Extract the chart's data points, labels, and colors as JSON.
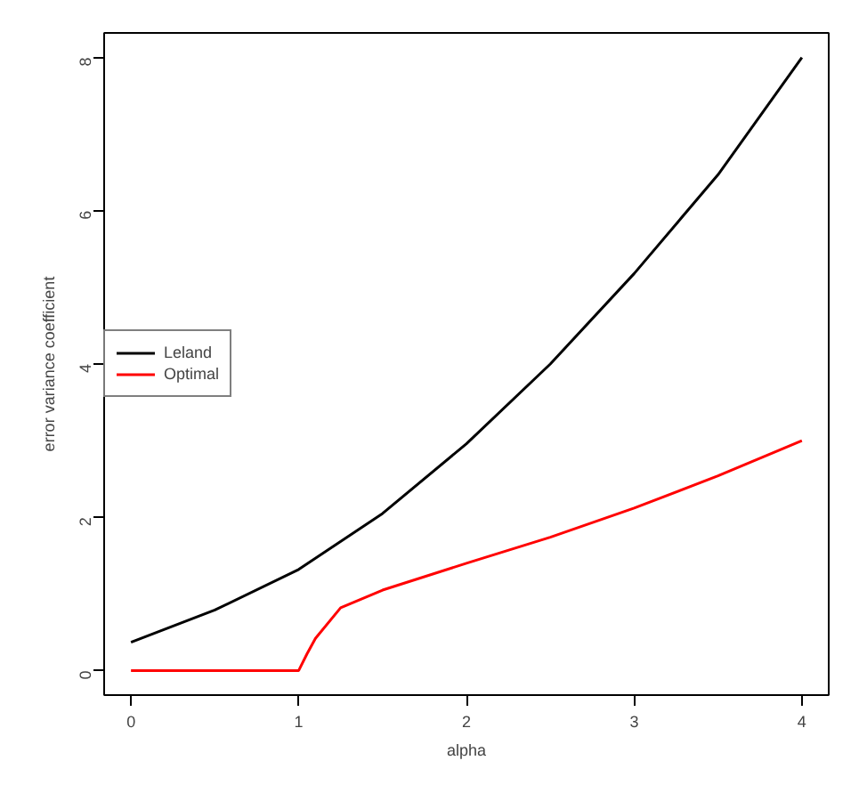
{
  "chart_data": {
    "type": "line",
    "xlabel": "alpha",
    "ylabel": "error variance coefficient",
    "xlim": [
      -0.16,
      4.16
    ],
    "ylim": [
      -0.32,
      8.32
    ],
    "xticks": [
      0,
      1,
      2,
      3,
      4
    ],
    "yticks": [
      0,
      2,
      4,
      6,
      8
    ],
    "grid": false,
    "legend": "left",
    "marker": "none",
    "line_style": "solid",
    "series": [
      {
        "name": "Leland",
        "color": "#000000",
        "x": [
          0,
          0.5,
          1,
          1.5,
          2,
          2.5,
          3,
          3.5,
          4
        ],
        "values": [
          0.37,
          0.79,
          1.32,
          2.05,
          2.96,
          4.0,
          5.18,
          6.47,
          8.0
        ]
      },
      {
        "name": "Optimal",
        "color": "#ff0000",
        "x": [
          0,
          1,
          1.05,
          1.1,
          1.25,
          1.5,
          2,
          2.5,
          3,
          3.5,
          4
        ],
        "values": [
          0,
          0,
          0.22,
          0.42,
          0.82,
          1.05,
          1.4,
          1.74,
          2.12,
          2.54,
          3.0
        ]
      }
    ]
  }
}
